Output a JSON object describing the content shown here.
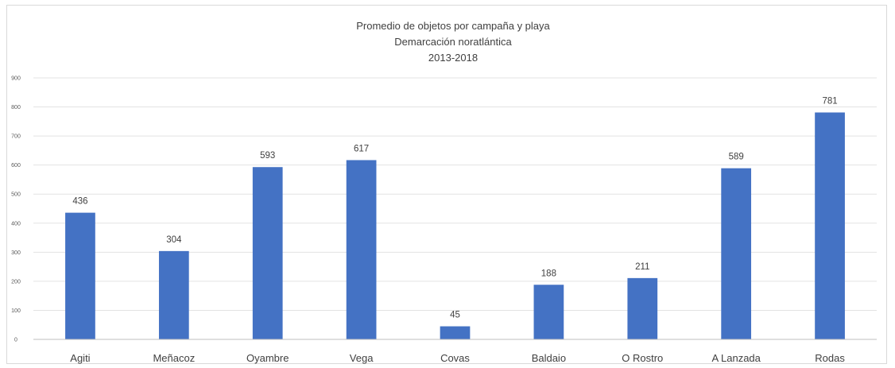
{
  "chart_data": {
    "type": "bar",
    "title": "Promedio de objetos por campaña y playa",
    "subtitle": "Demarcación noratlántica",
    "period": "2013-2018",
    "categories": [
      "Agiti",
      "Meñacoz",
      "Oyambre",
      "Vega",
      "Covas",
      "Baldaio",
      "O Rostro",
      "A Lanzada",
      "Rodas"
    ],
    "values": [
      436,
      304,
      593,
      617,
      45,
      188,
      211,
      589,
      781
    ],
    "data_labels": [
      "436",
      "304",
      "593",
      "617",
      "45",
      "188",
      "211",
      "589",
      "781"
    ],
    "ylim": [
      0,
      900
    ],
    "yticks": [
      "0",
      "100",
      "200",
      "300",
      "400",
      "500",
      "600",
      "700",
      "800",
      "900"
    ],
    "grid": true,
    "legend": "none",
    "bar_color": "#4472c4"
  }
}
